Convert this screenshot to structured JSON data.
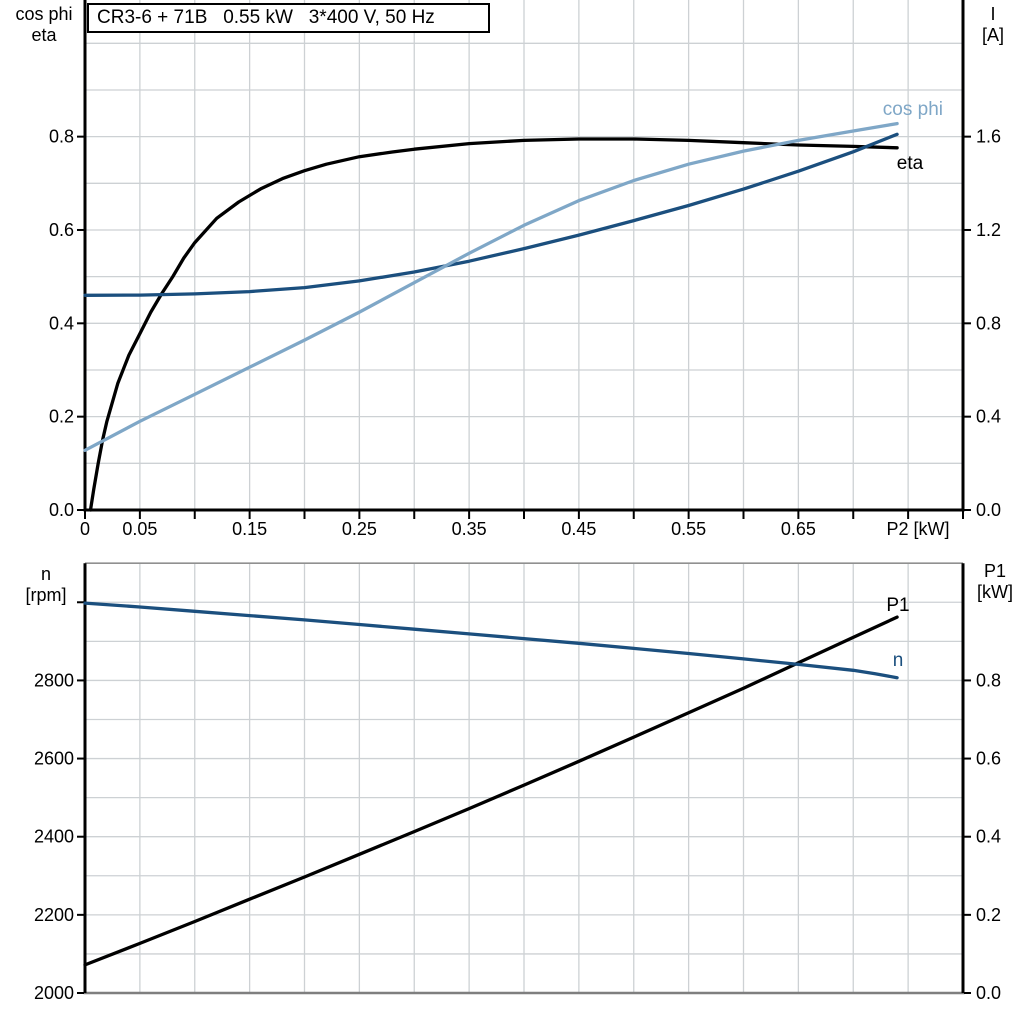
{
  "colors": {
    "eta_black": "#000000",
    "dark_blue": "#1b4f7e",
    "light_blue": "#7fa7c7",
    "grid": "#cdd1d4",
    "frame_gray": "#7f7f7f"
  },
  "chart_data": [
    {
      "type": "line",
      "title": "CR3-6 + 71B   0.55 kW   3*400 V, 50 Hz",
      "left_axis": {
        "label_lines": [
          "cos phi",
          "eta"
        ],
        "min": 0,
        "max": 1.0,
        "grid_step": 0.1,
        "ticks": [
          {
            "v": 0.0,
            "label": "0.0"
          },
          {
            "v": 0.2,
            "label": "0.2"
          },
          {
            "v": 0.4,
            "label": "0.4"
          },
          {
            "v": 0.6,
            "label": "0.6"
          },
          {
            "v": 0.8,
            "label": "0.8"
          }
        ]
      },
      "right_axis": {
        "label_lines": [
          "I",
          "[A]"
        ],
        "min": 0,
        "max": 2.0,
        "ticks": [
          {
            "v": 0.0,
            "label": "0.0"
          },
          {
            "v": 0.4,
            "label": "0.4"
          },
          {
            "v": 0.8,
            "label": "0.8"
          },
          {
            "v": 1.2,
            "label": "1.2"
          },
          {
            "v": 1.6,
            "label": "1.6"
          }
        ]
      },
      "x_axis": {
        "title": "P2 [kW]",
        "min": 0,
        "max": 0.8,
        "tick_step": 0.05,
        "labeled_ticks": [
          {
            "v": 0,
            "label": "0"
          },
          {
            "v": 0.05,
            "label": "0.05"
          },
          {
            "v": 0.15,
            "label": "0.15"
          },
          {
            "v": 0.25,
            "label": "0.25"
          },
          {
            "v": 0.35,
            "label": "0.35"
          },
          {
            "v": 0.45,
            "label": "0.45"
          },
          {
            "v": 0.55,
            "label": "0.55"
          },
          {
            "v": 0.65,
            "label": "0.65"
          }
        ]
      },
      "series": [
        {
          "name": "eta",
          "label": "eta",
          "axis": "left",
          "color": "#000000",
          "points": [
            [
              0.005,
              0
            ],
            [
              0.008,
              0.045
            ],
            [
              0.012,
              0.1
            ],
            [
              0.016,
              0.15
            ],
            [
              0.02,
              0.19
            ],
            [
              0.03,
              0.272
            ],
            [
              0.04,
              0.332
            ],
            [
              0.05,
              0.378
            ],
            [
              0.06,
              0.424
            ],
            [
              0.07,
              0.464
            ],
            [
              0.08,
              0.5
            ],
            [
              0.09,
              0.54
            ],
            [
              0.1,
              0.573
            ],
            [
              0.12,
              0.625
            ],
            [
              0.14,
              0.66
            ],
            [
              0.16,
              0.688
            ],
            [
              0.18,
              0.71
            ],
            [
              0.2,
              0.727
            ],
            [
              0.22,
              0.741
            ],
            [
              0.25,
              0.757
            ],
            [
              0.28,
              0.767
            ],
            [
              0.3,
              0.773
            ],
            [
              0.35,
              0.785
            ],
            [
              0.4,
              0.792
            ],
            [
              0.45,
              0.795
            ],
            [
              0.5,
              0.795
            ],
            [
              0.55,
              0.792
            ],
            [
              0.6,
              0.787
            ],
            [
              0.65,
              0.782
            ],
            [
              0.7,
              0.779
            ],
            [
              0.74,
              0.776
            ]
          ]
        },
        {
          "name": "I",
          "label": "",
          "axis": "right",
          "color": "#1b4f7e",
          "points": [
            [
              0,
              0.92
            ],
            [
              0.05,
              0.921
            ],
            [
              0.1,
              0.926
            ],
            [
              0.15,
              0.936
            ],
            [
              0.2,
              0.953
            ],
            [
              0.25,
              0.982
            ],
            [
              0.3,
              1.02
            ],
            [
              0.35,
              1.066
            ],
            [
              0.4,
              1.12
            ],
            [
              0.45,
              1.178
            ],
            [
              0.5,
              1.24
            ],
            [
              0.55,
              1.305
            ],
            [
              0.6,
              1.375
            ],
            [
              0.65,
              1.452
            ],
            [
              0.7,
              1.535
            ],
            [
              0.74,
              1.61
            ]
          ]
        },
        {
          "name": "cos phi",
          "label": "cos phi",
          "axis": "left",
          "color": "#7fa7c7",
          "points": [
            [
              0,
              0.128
            ],
            [
              0.05,
              0.19
            ],
            [
              0.1,
              0.248
            ],
            [
              0.15,
              0.306
            ],
            [
              0.2,
              0.364
            ],
            [
              0.25,
              0.424
            ],
            [
              0.3,
              0.487
            ],
            [
              0.35,
              0.55
            ],
            [
              0.4,
              0.61
            ],
            [
              0.45,
              0.663
            ],
            [
              0.5,
              0.706
            ],
            [
              0.55,
              0.741
            ],
            [
              0.6,
              0.769
            ],
            [
              0.65,
              0.792
            ],
            [
              0.7,
              0.812
            ],
            [
              0.74,
              0.828
            ]
          ]
        }
      ]
    },
    {
      "type": "line",
      "title": "",
      "left_axis": {
        "label_lines": [
          "n",
          "[rpm]"
        ],
        "min": 2000,
        "max": 3100,
        "grid_step": 100,
        "ticks": [
          {
            "v": 2000,
            "label": "2000"
          },
          {
            "v": 2200,
            "label": "2200"
          },
          {
            "v": 2400,
            "label": "2400"
          },
          {
            "v": 2600,
            "label": "2600"
          },
          {
            "v": 2800,
            "label": "2800"
          },
          {
            "v": 3000,
            "label": ""
          }
        ]
      },
      "right_axis": {
        "label_lines": [
          "P1",
          "[kW]"
        ],
        "min": 0,
        "max": 1.1,
        "ticks": [
          {
            "v": 0.0,
            "label": "0.0"
          },
          {
            "v": 0.2,
            "label": "0.2"
          },
          {
            "v": 0.4,
            "label": "0.4"
          },
          {
            "v": 0.6,
            "label": "0.6"
          },
          {
            "v": 0.8,
            "label": "0.8"
          }
        ]
      },
      "x_axis": {
        "title": "",
        "min": 0,
        "max": 0.8,
        "tick_step": 0.05,
        "labeled_ticks": []
      },
      "series": [
        {
          "name": "P1",
          "label": "P1",
          "axis": "right",
          "color": "#000000",
          "points": [
            [
              0,
              0.072
            ],
            [
              0.05,
              0.127
            ],
            [
              0.1,
              0.183
            ],
            [
              0.15,
              0.24
            ],
            [
              0.2,
              0.297
            ],
            [
              0.25,
              0.355
            ],
            [
              0.3,
              0.413
            ],
            [
              0.35,
              0.472
            ],
            [
              0.4,
              0.532
            ],
            [
              0.45,
              0.593
            ],
            [
              0.5,
              0.655
            ],
            [
              0.55,
              0.717
            ],
            [
              0.6,
              0.78
            ],
            [
              0.65,
              0.845
            ],
            [
              0.7,
              0.91
            ],
            [
              0.74,
              0.962
            ]
          ]
        },
        {
          "name": "n",
          "label": "n",
          "axis": "left",
          "color": "#1b4f7e",
          "points": [
            [
              0,
              2998
            ],
            [
              0.05,
              2988
            ],
            [
              0.1,
              2977
            ],
            [
              0.15,
              2966
            ],
            [
              0.2,
              2955
            ],
            [
              0.25,
              2943
            ],
            [
              0.3,
              2931
            ],
            [
              0.35,
              2919
            ],
            [
              0.4,
              2907
            ],
            [
              0.45,
              2895
            ],
            [
              0.5,
              2882
            ],
            [
              0.55,
              2869
            ],
            [
              0.6,
              2855
            ],
            [
              0.65,
              2841
            ],
            [
              0.7,
              2826
            ],
            [
              0.72,
              2817
            ],
            [
              0.74,
              2807
            ]
          ]
        }
      ]
    }
  ]
}
